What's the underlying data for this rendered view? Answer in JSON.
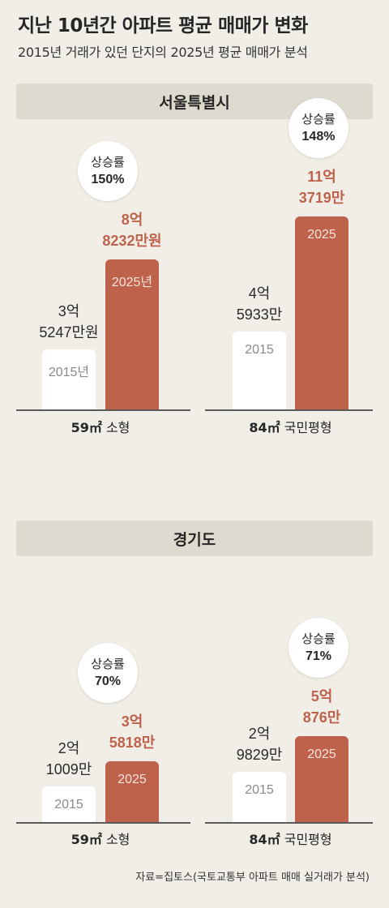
{
  "title": "지난 10년간 아파트 평균 매매가 변화",
  "subtitle": "2015년 거래가 있던 단지의 2025년 평균 매매가 분석",
  "source": "자료=집토스(국토교통부 아파트 매매 실거래가 분석)",
  "colors": {
    "background": "#F1EEE7",
    "header": "#DFDAD0",
    "bar_2015": "#FFFFFF",
    "bar_2025": "#BF624B"
  },
  "chart_data": [
    {
      "type": "bar",
      "title": "서울특별시",
      "unit": "만원",
      "series_years": [
        "2015",
        "2025"
      ],
      "groups": [
        {
          "label_bold": "59㎡",
          "label_rest": "소형",
          "bar_2015_label": "2015년",
          "bar_2025_label": "2025년",
          "value_2015_lines": [
            "3억",
            "5247만원"
          ],
          "value_2025_lines": [
            "8억",
            "8232만원"
          ],
          "value_2015": 35247,
          "value_2025": 88232,
          "rate_label": "상승률",
          "rate": "150%"
        },
        {
          "label_bold": "84㎡",
          "label_rest": "국민평형",
          "bar_2015_label": "2015",
          "bar_2025_label": "2025",
          "value_2015_lines": [
            "4억",
            "5933만"
          ],
          "value_2025_lines": [
            "11억",
            "3719만"
          ],
          "value_2015": 45933,
          "value_2025": 113719,
          "rate_label": "상승률",
          "rate": "148%"
        }
      ]
    },
    {
      "type": "bar",
      "title": "경기도",
      "unit": "만원",
      "series_years": [
        "2015",
        "2025"
      ],
      "groups": [
        {
          "label_bold": "59㎡",
          "label_rest": "소형",
          "bar_2015_label": "2015",
          "bar_2025_label": "2025",
          "value_2015_lines": [
            "2억",
            "1009만"
          ],
          "value_2025_lines": [
            "3억",
            "5818만"
          ],
          "value_2015": 21009,
          "value_2025": 35818,
          "rate_label": "상승률",
          "rate": "70%"
        },
        {
          "label_bold": "84㎡",
          "label_rest": "국민평형",
          "bar_2015_label": "2015",
          "bar_2025_label": "2025",
          "value_2015_lines": [
            "2억",
            "9829만"
          ],
          "value_2025_lines": [
            "5억",
            "876만"
          ],
          "value_2015": 29829,
          "value_2025": 50876,
          "rate_label": "상승률",
          "rate": "71%"
        }
      ]
    }
  ]
}
